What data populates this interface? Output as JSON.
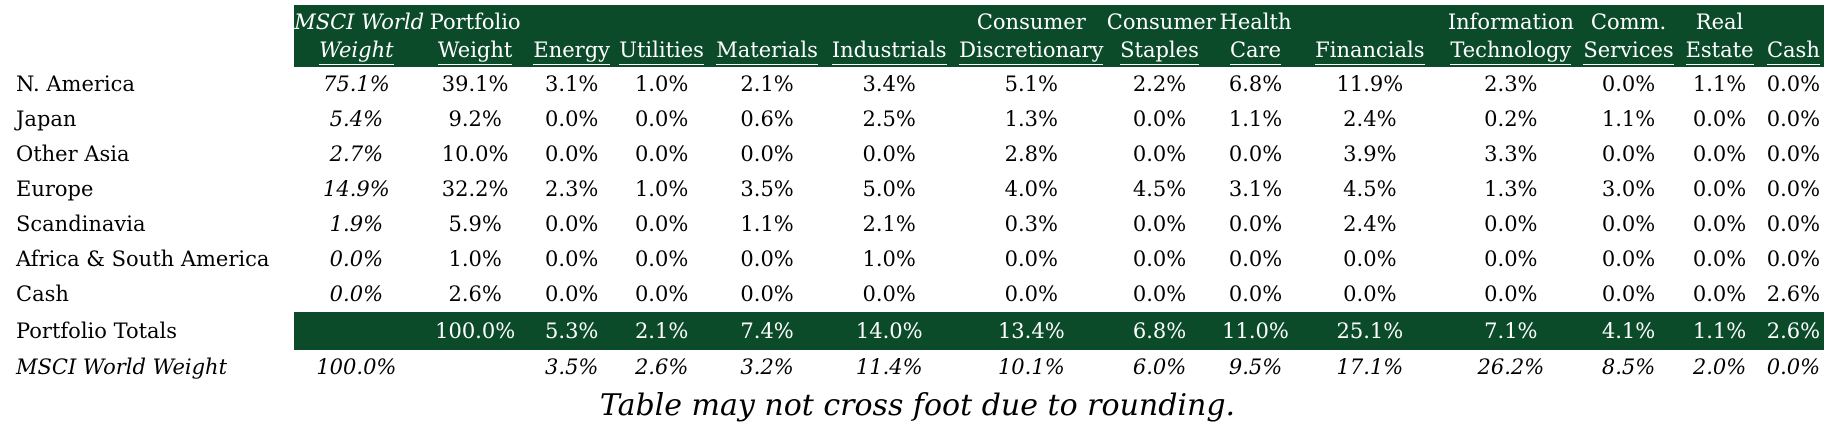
{
  "columns": [
    {
      "line1": "MSCI World",
      "line2": "Weight",
      "italic": true
    },
    {
      "line1": "Portfolio",
      "line2": "Weight",
      "italic": false
    },
    {
      "line1": "",
      "line2": "Energy",
      "italic": false
    },
    {
      "line1": "",
      "line2": "Utilities",
      "italic": false
    },
    {
      "line1": "",
      "line2": "Materials",
      "italic": false
    },
    {
      "line1": "",
      "line2": "Industrials",
      "italic": false
    },
    {
      "line1": "Consumer",
      "line2": "Discretionary",
      "italic": false
    },
    {
      "line1": "Consumer",
      "line2": "Staples",
      "italic": false
    },
    {
      "line1": "Health",
      "line2": "Care",
      "italic": false
    },
    {
      "line1": "",
      "line2": "Financials",
      "italic": false
    },
    {
      "line1": "Information",
      "line2": "Technology",
      "italic": false
    },
    {
      "line1": "Comm.",
      "line2": "Services",
      "italic": false
    },
    {
      "line1": "Real",
      "line2": "Estate",
      "italic": false
    },
    {
      "line1": "",
      "line2": "Cash",
      "italic": false
    }
  ],
  "rows": [
    {
      "label": "N. America",
      "values": [
        "75.1%",
        "39.1%",
        "3.1%",
        "1.0%",
        "2.1%",
        "3.4%",
        "5.1%",
        "2.2%",
        "6.8%",
        "11.9%",
        "2.3%",
        "0.0%",
        "1.1%",
        "0.0%"
      ]
    },
    {
      "label": "Japan",
      "values": [
        "5.4%",
        "9.2%",
        "0.0%",
        "0.0%",
        "0.6%",
        "2.5%",
        "1.3%",
        "0.0%",
        "1.1%",
        "2.4%",
        "0.2%",
        "1.1%",
        "0.0%",
        "0.0%"
      ]
    },
    {
      "label": "Other Asia",
      "values": [
        "2.7%",
        "10.0%",
        "0.0%",
        "0.0%",
        "0.0%",
        "0.0%",
        "2.8%",
        "0.0%",
        "0.0%",
        "3.9%",
        "3.3%",
        "0.0%",
        "0.0%",
        "0.0%"
      ]
    },
    {
      "label": "Europe",
      "values": [
        "14.9%",
        "32.2%",
        "2.3%",
        "1.0%",
        "3.5%",
        "5.0%",
        "4.0%",
        "4.5%",
        "3.1%",
        "4.5%",
        "1.3%",
        "3.0%",
        "0.0%",
        "0.0%"
      ]
    },
    {
      "label": "Scandinavia",
      "values": [
        "1.9%",
        "5.9%",
        "0.0%",
        "0.0%",
        "1.1%",
        "2.1%",
        "0.3%",
        "0.0%",
        "0.0%",
        "2.4%",
        "0.0%",
        "0.0%",
        "0.0%",
        "0.0%"
      ]
    },
    {
      "label": "Africa & South America",
      "values": [
        "0.0%",
        "1.0%",
        "0.0%",
        "0.0%",
        "0.0%",
        "1.0%",
        "0.0%",
        "0.0%",
        "0.0%",
        "0.0%",
        "0.0%",
        "0.0%",
        "0.0%",
        "0.0%"
      ]
    },
    {
      "label": "Cash",
      "values": [
        "0.0%",
        "2.6%",
        "0.0%",
        "0.0%",
        "0.0%",
        "0.0%",
        "0.0%",
        "0.0%",
        "0.0%",
        "0.0%",
        "0.0%",
        "0.0%",
        "0.0%",
        "2.6%"
      ]
    }
  ],
  "totals": {
    "label": "Portfolio Totals",
    "values": [
      "",
      "100.0%",
      "5.3%",
      "2.1%",
      "7.4%",
      "14.0%",
      "13.4%",
      "6.8%",
      "11.0%",
      "25.1%",
      "7.1%",
      "4.1%",
      "1.1%",
      "2.6%"
    ]
  },
  "msci": {
    "label": "MSCI World Weight",
    "values": [
      "100.0%",
      "",
      "3.5%",
      "2.6%",
      "3.2%",
      "11.4%",
      "10.1%",
      "6.0%",
      "9.5%",
      "17.1%",
      "26.2%",
      "8.5%",
      "2.0%",
      "0.0%"
    ]
  },
  "footnote": "Table may not cross foot due to rounding.",
  "colors": {
    "header_bg": "#0b4b2a",
    "header_text": "#ffffff"
  }
}
